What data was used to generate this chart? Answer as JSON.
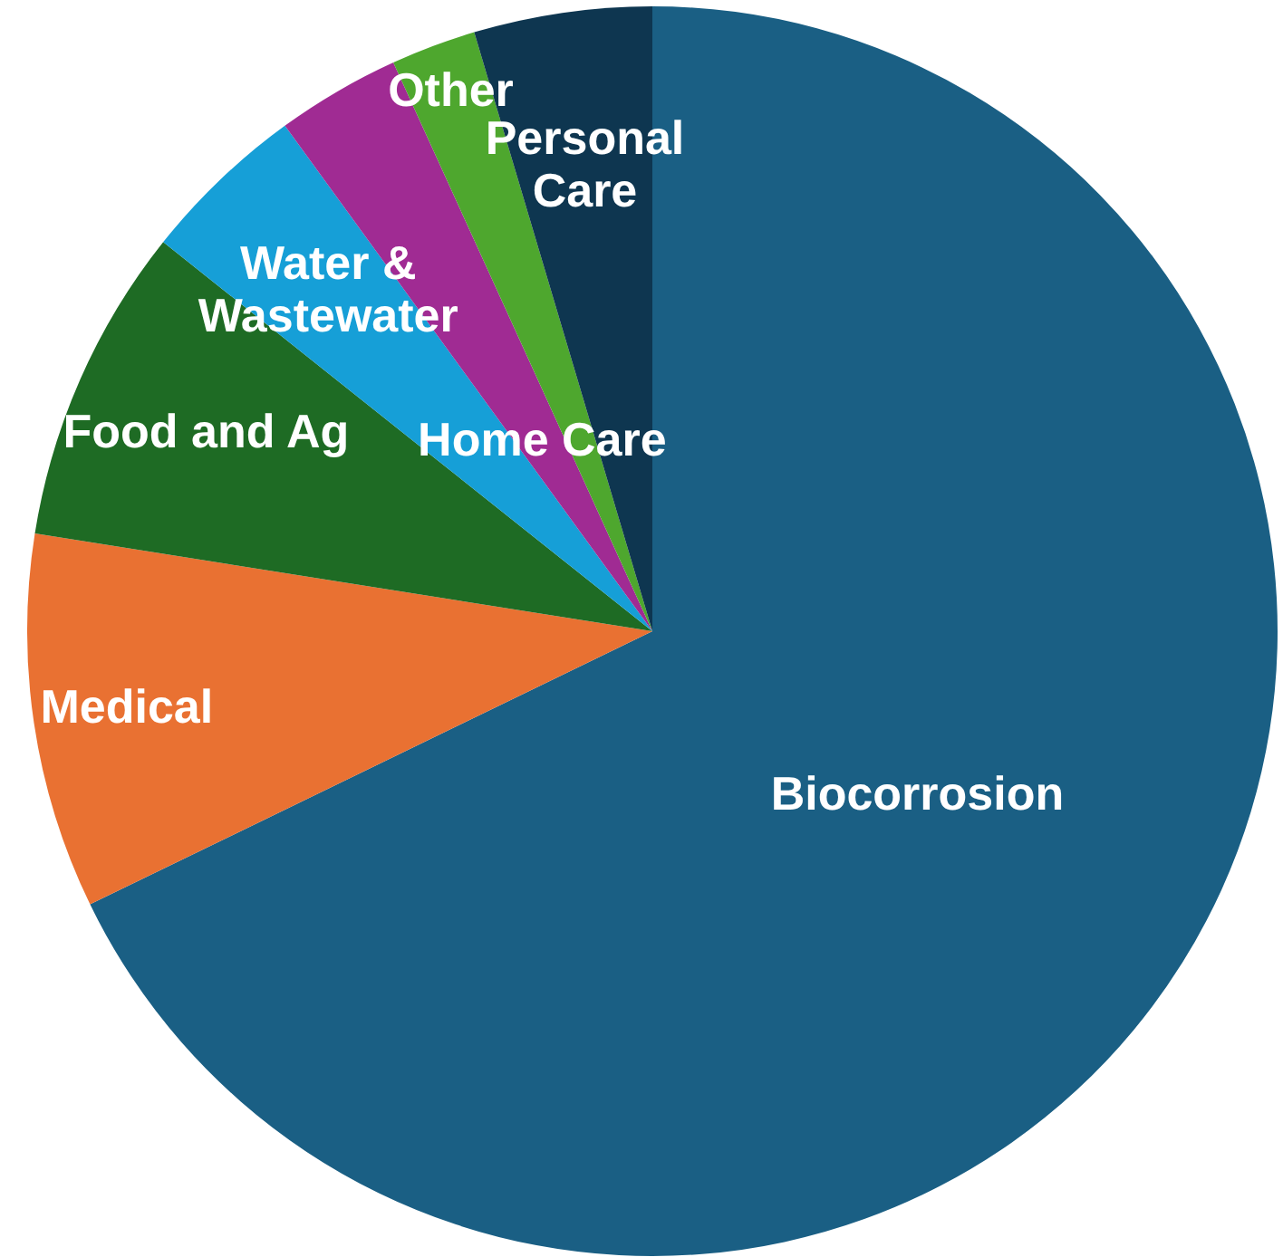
{
  "chart_data": {
    "type": "pie",
    "categories": [
      "Biocorrosion",
      "Medical",
      "Food and Ag",
      "Water & Wastewater",
      "Home Care",
      "Other",
      "Personal Care"
    ],
    "values": [
      67.8,
      9.7,
      8.2,
      4.3,
      3.2,
      2.2,
      4.6
    ],
    "colors": [
      "#1a5f84",
      "#e97132",
      "#1e6b24",
      "#169fd7",
      "#a02b93",
      "#4ea72e",
      "#0e3650"
    ],
    "legend": false
  }
}
